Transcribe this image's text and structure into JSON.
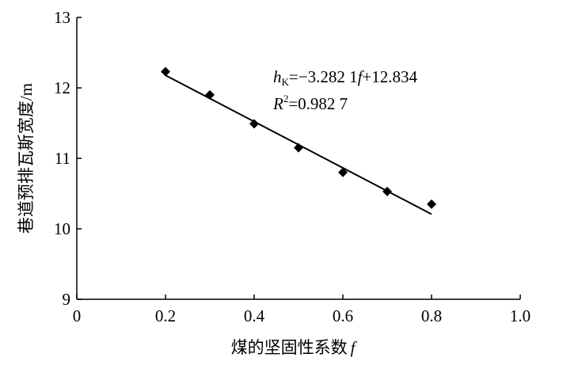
{
  "chart_data": {
    "type": "scatter",
    "x_label": "煤的坚固性系数",
    "x_label_symbol": "f",
    "y_label": "巷道预排瓦斯宽度/m",
    "x": [
      0.2,
      0.3,
      0.4,
      0.5,
      0.6,
      0.7,
      0.8
    ],
    "values": [
      12.23,
      11.9,
      11.49,
      11.15,
      10.8,
      10.53,
      10.35
    ],
    "color": "#000000",
    "fit_line": {
      "x": [
        0.2,
        0.8
      ],
      "y": [
        12.178,
        10.208
      ]
    },
    "annotation": {
      "line1": [
        "h",
        "K",
        "=−3.282 1",
        "f",
        "+12.834"
      ],
      "line2": [
        "R",
        "2",
        "=0.982 7"
      ]
    },
    "xlim": [
      0,
      1.0
    ],
    "xticks": [
      0,
      0.2,
      0.4,
      0.6,
      0.8,
      {
        "value": 1.0,
        "label": "1.0"
      }
    ],
    "ylim": [
      9,
      13
    ],
    "yticks": [
      9,
      10,
      11,
      12,
      13
    ],
    "grid": false
  }
}
